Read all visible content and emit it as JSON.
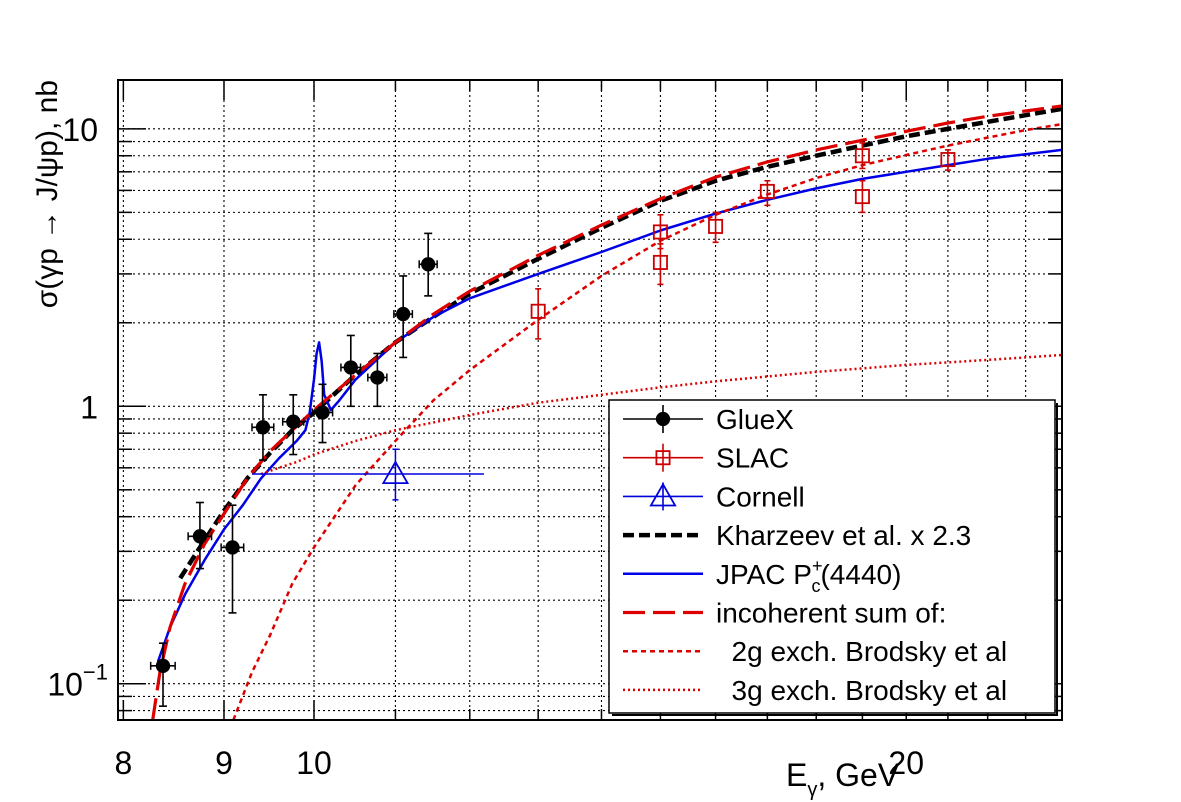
{
  "chart_data": {
    "type": "scatter",
    "xlabel": "E",
    "xlabel_sub": "γ",
    "xlabel_tail": ", GeV",
    "ylabel": "σ(γp → J/ψp), nb",
    "xscale": "log",
    "yscale": "log",
    "xlim": [
      7.95,
      24
    ],
    "ylim": [
      0.074,
      15
    ],
    "grid": true,
    "legend_position": "bottom-right",
    "x_tick_labels": [
      {
        "x": 8,
        "label": "8"
      },
      {
        "x": 9,
        "label": "9"
      },
      {
        "x": 10,
        "label": "10"
      },
      {
        "x": 20,
        "label": "20"
      }
    ],
    "y_tick_labels": [
      {
        "y": 0.1,
        "base": "10",
        "exp": "−1"
      },
      {
        "y": 1,
        "base": "1",
        "exp": ""
      },
      {
        "y": 10,
        "base": "10",
        "exp": ""
      }
    ],
    "series": [
      {
        "name": "GlueX",
        "kind": "points",
        "marker": "filled-circle",
        "color": "#000000",
        "points": [
          {
            "x": 8.38,
            "y": 0.116,
            "xerr": 0.12,
            "ylo": 0.083,
            "yhi": 0.14
          },
          {
            "x": 8.75,
            "y": 0.34,
            "xerr": 0.12,
            "ylo": 0.26,
            "yhi": 0.45
          },
          {
            "x": 9.09,
            "y": 0.31,
            "xerr": 0.12,
            "ylo": 0.18,
            "yhi": 0.44
          },
          {
            "x": 9.42,
            "y": 0.84,
            "xerr": 0.12,
            "ylo": 0.64,
            "yhi": 1.1
          },
          {
            "x": 9.76,
            "y": 0.88,
            "xerr": 0.12,
            "ylo": 0.67,
            "yhi": 1.1
          },
          {
            "x": 10.1,
            "y": 0.95,
            "xerr": 0.12,
            "ylo": 0.74,
            "yhi": 1.2
          },
          {
            "x": 10.44,
            "y": 1.38,
            "xerr": 0.12,
            "ylo": 1.0,
            "yhi": 1.8
          },
          {
            "x": 10.77,
            "y": 1.27,
            "xerr": 0.12,
            "ylo": 1.0,
            "yhi": 1.55
          },
          {
            "x": 11.1,
            "y": 2.15,
            "xerr": 0.12,
            "ylo": 1.5,
            "yhi": 2.95
          },
          {
            "x": 11.43,
            "y": 3.25,
            "xerr": 0.12,
            "ylo": 2.5,
            "yhi": 4.2
          }
        ]
      },
      {
        "name": "SLAC",
        "kind": "points",
        "marker": "open-square",
        "color": "#cc0000",
        "points": [
          {
            "x": 13.0,
            "y": 2.2,
            "xerr": 0,
            "ylo": 1.75,
            "yhi": 2.65
          },
          {
            "x": 15.0,
            "y": 3.3,
            "xerr": 0,
            "ylo": 2.75,
            "yhi": 3.85
          },
          {
            "x": 15.0,
            "y": 4.25,
            "xerr": 0,
            "ylo": 3.7,
            "yhi": 4.9
          },
          {
            "x": 16.0,
            "y": 4.45,
            "xerr": 0,
            "ylo": 3.9,
            "yhi": 5.0
          },
          {
            "x": 17.0,
            "y": 5.95,
            "xerr": 0,
            "ylo": 5.3,
            "yhi": 6.5
          },
          {
            "x": 19.0,
            "y": 5.7,
            "xerr": 0,
            "ylo": 5.0,
            "yhi": 6.5
          },
          {
            "x": 19.0,
            "y": 8.0,
            "xerr": 0,
            "ylo": 7.2,
            "yhi": 8.9
          },
          {
            "x": 21.0,
            "y": 7.75,
            "xerr": 0,
            "ylo": 7.1,
            "yhi": 8.4
          }
        ]
      },
      {
        "name": "Cornell",
        "kind": "points",
        "marker": "open-triangle",
        "color": "#0000dd",
        "points": [
          {
            "x": 11.0,
            "y": 0.57,
            "xlo": 9.3,
            "xhi": 12.2,
            "ylo": 0.46,
            "yhi": 0.7
          }
        ]
      },
      {
        "name": "Kharzeev et al. x 2.3",
        "kind": "curve",
        "style": "dashed-thick",
        "color": "#000000",
        "x": [
          8.55,
          8.8,
          9.0,
          9.25,
          9.5,
          9.75,
          10.0,
          10.5,
          11.0,
          11.5,
          12.0,
          13.0,
          14.0,
          15.0,
          16.0,
          17.0,
          18.0,
          19.0,
          20.0,
          21.0,
          22.0,
          23.0,
          24.0
        ],
        "y": [
          0.24,
          0.33,
          0.42,
          0.55,
          0.68,
          0.82,
          0.95,
          1.3,
          1.7,
          2.1,
          2.55,
          3.4,
          4.4,
          5.5,
          6.5,
          7.3,
          8.0,
          8.7,
          9.4,
          10.0,
          10.6,
          11.2,
          11.8
        ]
      },
      {
        "name": "JPAC P",
        "label_sup": "+",
        "label_sub": "c",
        "label_tail": "(4440)",
        "kind": "curve",
        "style": "solid",
        "color": "#0000e6",
        "x": [
          8.33,
          8.45,
          8.6,
          8.8,
          9.0,
          9.2,
          9.4,
          9.6,
          9.8,
          9.9,
          9.95,
          10.0,
          10.03,
          10.06,
          10.09,
          10.12,
          10.2,
          10.3,
          10.5,
          11.0,
          11.5,
          12.0,
          13.0,
          14.0,
          15.0,
          16.0,
          17.0,
          18.0,
          19.0,
          20.0,
          21.0,
          22.0,
          23.0,
          24.0
        ],
        "y": [
          0.12,
          0.16,
          0.21,
          0.28,
          0.36,
          0.44,
          0.55,
          0.65,
          0.75,
          0.82,
          0.95,
          1.25,
          1.55,
          1.7,
          1.45,
          1.1,
          0.97,
          1.05,
          1.25,
          1.7,
          2.1,
          2.45,
          3.0,
          3.6,
          4.3,
          4.95,
          5.55,
          6.1,
          6.6,
          7.0,
          7.4,
          7.8,
          8.1,
          8.4
        ]
      },
      {
        "name": "incoherent sum of:",
        "kind": "curve",
        "style": "long-dash",
        "color": "#dd0000",
        "x": [
          8.28,
          8.35,
          8.45,
          8.6,
          8.8,
          9.0,
          9.25,
          9.5,
          10.0,
          10.5,
          11.0,
          11.5,
          12.0,
          13.0,
          14.0,
          15.0,
          16.0,
          17.0,
          18.0,
          19.0,
          20.0,
          21.0,
          22.0,
          23.0,
          24.0
        ],
        "y": [
          0.074,
          0.11,
          0.16,
          0.23,
          0.32,
          0.41,
          0.55,
          0.69,
          0.97,
          1.3,
          1.7,
          2.15,
          2.6,
          3.5,
          4.5,
          5.6,
          6.7,
          7.6,
          8.4,
          9.1,
          9.8,
          10.5,
          11.1,
          11.6,
          12.1
        ]
      },
      {
        "name": "2g exch. Brodsky et al",
        "kind": "curve",
        "style": "dashed-thin",
        "color": "#dd0000",
        "x": [
          9.1,
          9.3,
          9.5,
          9.75,
          10.0,
          10.5,
          11.0,
          11.5,
          12.0,
          13.0,
          14.0,
          15.0,
          16.0,
          17.0,
          18.0,
          19.0,
          20.0,
          21.0,
          22.0,
          23.0,
          24.0
        ],
        "y": [
          0.074,
          0.11,
          0.15,
          0.23,
          0.31,
          0.52,
          0.75,
          1.05,
          1.35,
          2.05,
          2.95,
          3.95,
          4.9,
          5.8,
          6.65,
          7.4,
          8.05,
          8.7,
          9.3,
          9.9,
          10.4
        ]
      },
      {
        "name": "3g exch. Brodsky et al",
        "kind": "curve",
        "style": "dotted",
        "color": "#dd0000",
        "x": [
          9.4,
          9.6,
          9.8,
          10.0,
          10.5,
          11.0,
          12.0,
          13.0,
          14.0,
          15.0,
          16.0,
          17.0,
          18.0,
          19.0,
          20.0,
          21.0,
          22.0,
          23.0,
          24.0
        ],
        "y": [
          0.57,
          0.6,
          0.63,
          0.67,
          0.75,
          0.82,
          0.93,
          1.03,
          1.1,
          1.17,
          1.23,
          1.28,
          1.33,
          1.37,
          1.41,
          1.44,
          1.47,
          1.5,
          1.53
        ]
      }
    ],
    "legend": [
      {
        "series": "GlueX",
        "label": "GlueX"
      },
      {
        "series": "SLAC",
        "label": "SLAC"
      },
      {
        "series": "Cornell",
        "label": "Cornell"
      },
      {
        "series": "Kharzeev et al. x 2.3",
        "label": "Kharzeev et al. x 2.3"
      },
      {
        "series": "JPAC P",
        "label": "JPAC P",
        "sup": "+",
        "sub": "c",
        "tail": "(4440)"
      },
      {
        "series": "incoherent sum of:",
        "label": "incoherent sum of:"
      },
      {
        "series": "2g exch. Brodsky et al",
        "label": "  2g exch. Brodsky et al"
      },
      {
        "series": "3g exch. Brodsky et al",
        "label": "  3g exch. Brodsky et al"
      }
    ]
  }
}
